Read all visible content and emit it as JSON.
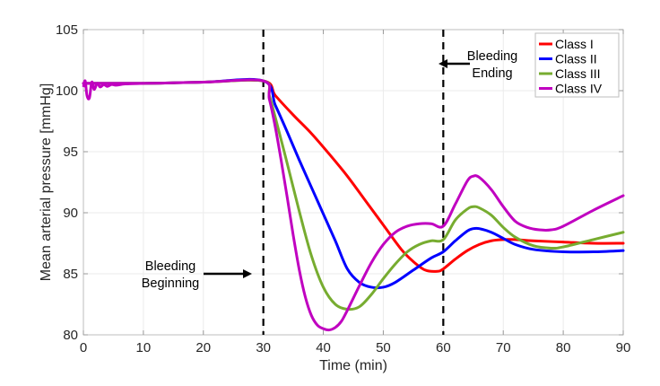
{
  "chart_data": {
    "type": "line",
    "title": "",
    "xlabel": "Time (min)",
    "ylabel": "Mean arterial pressure [mmHg]",
    "xlim": [
      0,
      90
    ],
    "ylim": [
      80,
      105
    ],
    "xticks": [
      0,
      10,
      20,
      30,
      40,
      50,
      60,
      70,
      80,
      90
    ],
    "yticks": [
      80,
      85,
      90,
      95,
      100,
      105
    ],
    "grid": true,
    "legend_position": "top-right",
    "vlines": [
      {
        "x": 30,
        "style": "dashed",
        "color": "#000000"
      },
      {
        "x": 60,
        "style": "dashed",
        "color": "#000000"
      }
    ],
    "annotations": [
      {
        "text_lines": [
          "Bleeding",
          "Beginning"
        ],
        "x": 30,
        "y": 85,
        "arrow": "right"
      },
      {
        "text_lines": [
          "Bleeding",
          "Ending"
        ],
        "x": 60,
        "y": 102.3,
        "arrow": "left"
      }
    ],
    "initial_transient": {
      "x": [
        0,
        0.3,
        0.6,
        1,
        1.4,
        1.8,
        2.3,
        2.8,
        3.4,
        4,
        4.7,
        5.5,
        7,
        10
      ],
      "y": [
        100.3,
        100.8,
        99.6,
        99.4,
        100.7,
        100.1,
        100.6,
        100.3,
        100.5,
        100.35,
        100.5,
        100.45,
        100.55,
        100.6
      ]
    },
    "series": [
      {
        "name": "Class I",
        "color": "#ff0000",
        "x": [
          0,
          10,
          20,
          30,
          32,
          35,
          38,
          41,
          44,
          47,
          50,
          53,
          55,
          57,
          59,
          60,
          62,
          64,
          66,
          68,
          70,
          72,
          75,
          80,
          85,
          90
        ],
        "y": [
          100.6,
          100.6,
          100.7,
          100.8,
          99.6,
          98.0,
          96.5,
          94.8,
          93.0,
          91.0,
          89.0,
          87.0,
          86.0,
          85.3,
          85.2,
          85.4,
          86.2,
          86.9,
          87.4,
          87.7,
          87.8,
          87.8,
          87.7,
          87.6,
          87.5,
          87.5
        ]
      },
      {
        "name": "Class II",
        "color": "#0000ff",
        "x": [
          0,
          10,
          20,
          30,
          32,
          34,
          36,
          38,
          40,
          42,
          44,
          46,
          48,
          50,
          52,
          55,
          58,
          60,
          62,
          64,
          65,
          66,
          68,
          70,
          72,
          75,
          80,
          85,
          90
        ],
        "y": [
          100.6,
          100.6,
          100.7,
          100.8,
          98.8,
          96.6,
          94.3,
          92.1,
          89.9,
          87.7,
          85.4,
          84.3,
          83.9,
          83.9,
          84.3,
          85.3,
          86.3,
          86.8,
          87.7,
          88.5,
          88.7,
          88.7,
          88.4,
          87.9,
          87.4,
          87.0,
          86.8,
          86.8,
          86.9
        ]
      },
      {
        "name": "Class III",
        "color": "#77ac30",
        "x": [
          0,
          10,
          20,
          30,
          31,
          32,
          34,
          36,
          38,
          40,
          42,
          44,
          46,
          48,
          50,
          52,
          54,
          56,
          58,
          60,
          62,
          64,
          65,
          66,
          68,
          70,
          72,
          75,
          78,
          80,
          85,
          90
        ],
        "y": [
          100.6,
          100.6,
          100.7,
          100.8,
          99.6,
          97.8,
          94.0,
          90.1,
          86.5,
          83.9,
          82.5,
          82.1,
          82.3,
          83.3,
          84.6,
          85.8,
          86.8,
          87.4,
          87.7,
          87.8,
          89.4,
          90.3,
          90.5,
          90.4,
          89.8,
          88.8,
          88.0,
          87.3,
          87.1,
          87.2,
          87.8,
          88.4
        ]
      },
      {
        "name": "Class IV",
        "color": "#c000c0",
        "x": [
          0,
          10,
          20,
          30,
          31,
          32,
          33,
          34,
          35,
          36,
          37,
          38,
          39,
          40,
          41,
          42,
          43,
          44,
          46,
          48,
          50,
          52,
          54,
          56,
          58,
          60,
          62,
          64,
          65,
          66,
          68,
          70,
          72,
          74,
          76,
          78,
          80,
          85,
          90
        ],
        "y": [
          100.6,
          100.6,
          100.7,
          100.8,
          99.3,
          97.0,
          94.2,
          91.2,
          88.1,
          85.3,
          83.1,
          81.6,
          80.8,
          80.5,
          80.4,
          80.6,
          81.1,
          82.0,
          84.0,
          85.9,
          87.4,
          88.4,
          88.9,
          89.1,
          89.1,
          88.9,
          90.7,
          92.6,
          93.0,
          92.9,
          91.9,
          90.5,
          89.3,
          88.8,
          88.6,
          88.6,
          88.9,
          90.2,
          91.4
        ]
      }
    ]
  }
}
